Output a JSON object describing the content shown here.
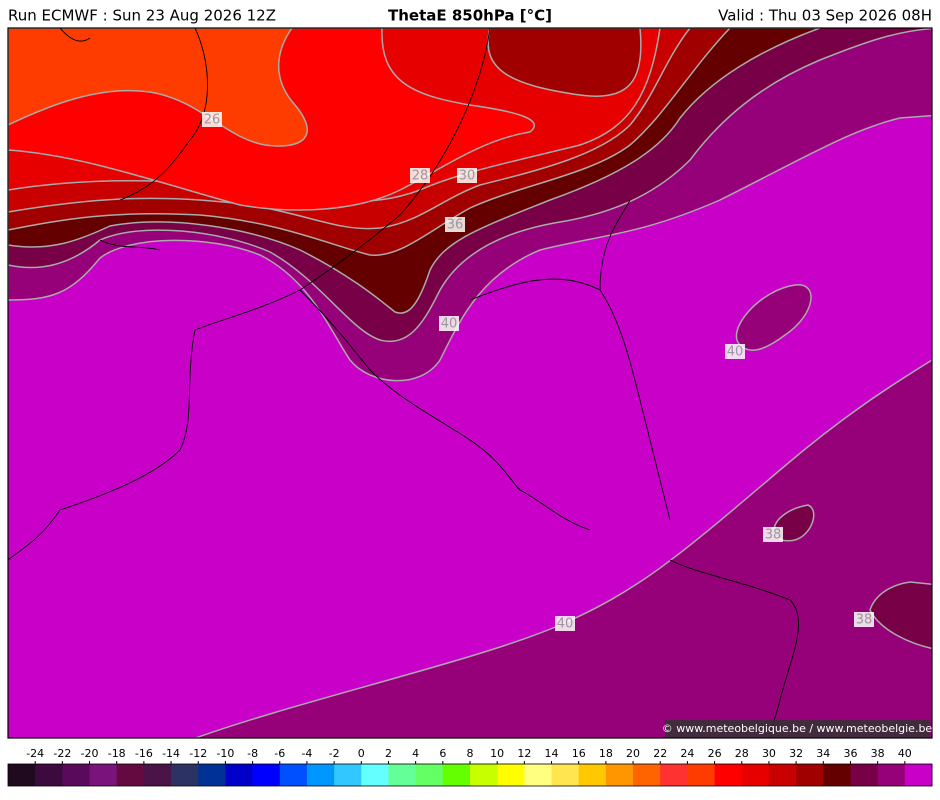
{
  "header": {
    "run": "Run ECMWF : Sun 23 Aug 2026 12Z",
    "title": "ThetaE 850hPa [°C]",
    "valid": "Valid : Thu 03 Sep 2026 08H"
  },
  "contour_labels": [
    26,
    28,
    30,
    36,
    40,
    40,
    38,
    38,
    40
  ],
  "colorbar": {
    "ticks": [
      -24,
      -22,
      -20,
      -18,
      -16,
      -14,
      -12,
      -10,
      -8,
      -6,
      -4,
      -2,
      0,
      2,
      4,
      6,
      8,
      10,
      12,
      14,
      16,
      18,
      20,
      22,
      24,
      26,
      28,
      30,
      32,
      34,
      36,
      38,
      40
    ],
    "colors": [
      "#200a20",
      "#3c0a3c",
      "#5a0a5a",
      "#7a147a",
      "#640a40",
      "#4a1448",
      "#2d3264",
      "#003296",
      "#0000c8",
      "#0000ff",
      "#0050ff",
      "#0096ff",
      "#32c8ff",
      "#64ffff",
      "#64ff96",
      "#64ff64",
      "#64ff00",
      "#c8ff00",
      "#ffff00",
      "#ffff80",
      "#ffe650",
      "#ffc800",
      "#ff9600",
      "#ff6400",
      "#ff3232",
      "#ff3c00",
      "#ff0000",
      "#e60000",
      "#c80000",
      "#a00000",
      "#640000",
      "#780046",
      "#960078",
      "#c800c8"
    ]
  },
  "credit": "© www.meteobelgique.be / www.meteobelgie.be"
}
